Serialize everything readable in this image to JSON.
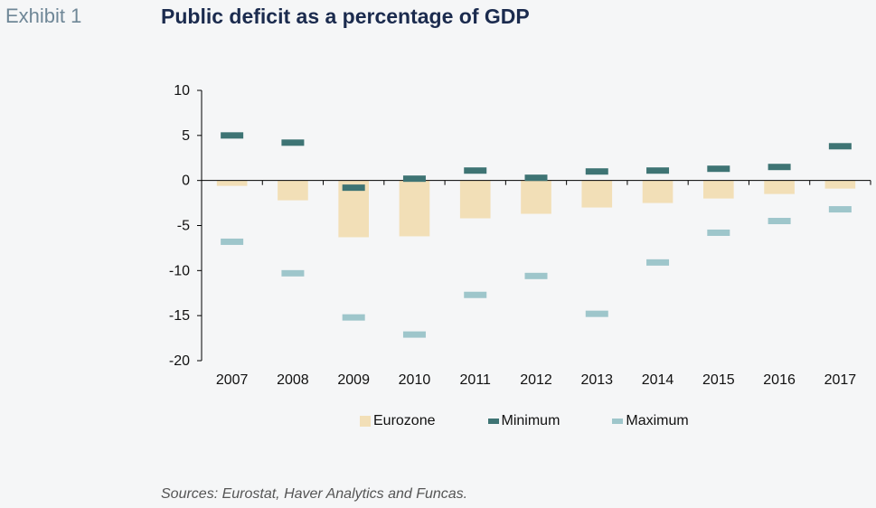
{
  "header": {
    "exhibit": "Exhibit 1",
    "title": "Public deficit as a percentage of GDP"
  },
  "chart_data": {
    "type": "bar",
    "title": "Public deficit as a percentage of GDP",
    "xlabel": "",
    "ylabel": "",
    "categories": [
      "2007",
      "2008",
      "2009",
      "2010",
      "2011",
      "2012",
      "2013",
      "2014",
      "2015",
      "2016",
      "2017"
    ],
    "ylim": [
      -20,
      10
    ],
    "yticks": [
      10,
      5,
      0,
      -5,
      -10,
      -15,
      -20
    ],
    "grid": false,
    "legend_position": "bottom",
    "series": [
      {
        "name": "Eurozone",
        "kind": "bar",
        "color": "#f2dfb7",
        "values": [
          -0.6,
          -2.2,
          -6.3,
          -6.2,
          -4.2,
          -3.7,
          -3.0,
          -2.5,
          -2.0,
          -1.5,
          -0.9
        ]
      },
      {
        "name": "Minimum",
        "kind": "marker",
        "color": "#3e7474",
        "values": [
          5.0,
          4.2,
          -0.8,
          0.2,
          1.1,
          0.3,
          1.0,
          1.1,
          1.3,
          1.5,
          3.8
        ]
      },
      {
        "name": "Maximum",
        "kind": "marker",
        "color": "#9ec6cb",
        "values": [
          -6.8,
          -10.3,
          -15.2,
          -17.1,
          -12.7,
          -10.6,
          -14.8,
          -9.1,
          -5.8,
          -4.5,
          -3.2
        ]
      }
    ]
  },
  "footer": {
    "source": "Sources: Eurostat, Haver Analytics and Funcas."
  }
}
